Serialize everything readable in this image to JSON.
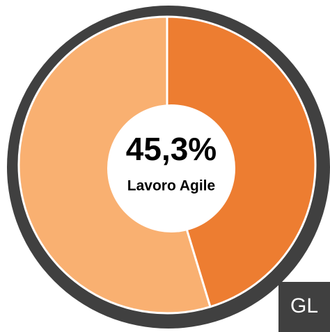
{
  "chart_data": {
    "type": "donut",
    "categories": [
      "Lavoro Agile",
      null
    ],
    "values": [
      45.3,
      54.7
    ],
    "value_labels": [
      "45,3%",
      null
    ],
    "colors": [
      "#ED7D31",
      "#F9B071"
    ],
    "corner_label": "GL"
  }
}
